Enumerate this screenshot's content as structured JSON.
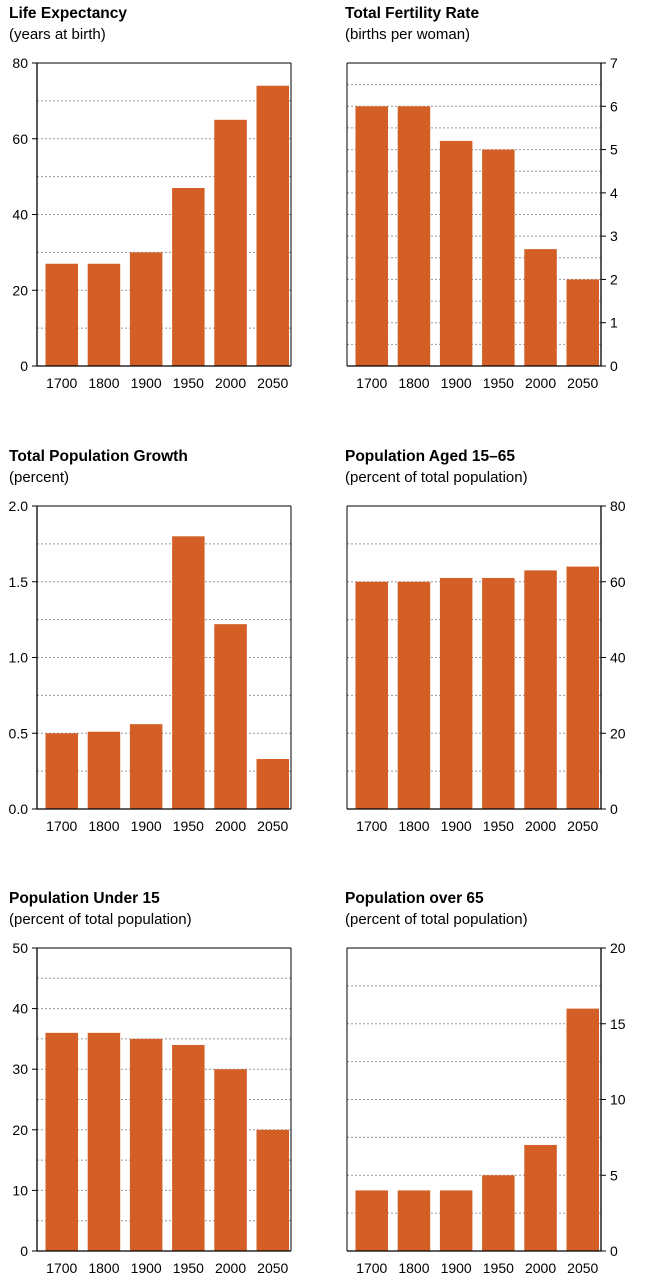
{
  "style": {
    "bar_color": "#D35F27",
    "grid_color": "#999999",
    "axis_color": "#000000"
  },
  "chart_data": [
    {
      "type": "bar",
      "title": "Life Expectancy",
      "subtitle": "(years at birth)",
      "categories": [
        "1700",
        "1800",
        "1900",
        "1950",
        "2000",
        "2050"
      ],
      "values": [
        27,
        27,
        30,
        47,
        65,
        74
      ],
      "ylim": [
        0,
        80
      ],
      "yticks": [
        0,
        20,
        40,
        60,
        80
      ],
      "ytick_labels": [
        "0",
        "20",
        "40",
        "60",
        "80"
      ],
      "yaxis_side": "left",
      "grid": true
    },
    {
      "type": "bar",
      "title": "Total Fertility Rate",
      "subtitle": "(births per woman)",
      "categories": [
        "1700",
        "1800",
        "1900",
        "1950",
        "2000",
        "2050"
      ],
      "values": [
        6.0,
        6.0,
        5.2,
        5.0,
        2.7,
        2.0
      ],
      "ylim": [
        0,
        7
      ],
      "yticks": [
        0,
        1,
        2,
        3,
        4,
        5,
        6,
        7
      ],
      "ytick_labels": [
        "0",
        "1",
        "2",
        "3",
        "4",
        "5",
        "6",
        "7"
      ],
      "yaxis_side": "right",
      "grid": true
    },
    {
      "type": "bar",
      "title": "Total Population Growth",
      "subtitle": "(percent)",
      "categories": [
        "1700",
        "1800",
        "1900",
        "1950",
        "2000",
        "2050"
      ],
      "values": [
        0.5,
        0.51,
        0.56,
        1.8,
        1.22,
        0.33
      ],
      "ylim": [
        0,
        2.0
      ],
      "yticks": [
        0,
        0.5,
        1.0,
        1.5,
        2.0
      ],
      "ytick_labels": [
        "0.0",
        "0.5",
        "1.0",
        "1.5",
        "2.0"
      ],
      "yaxis_side": "left",
      "grid": true
    },
    {
      "type": "bar",
      "title": "Population Aged 15–65",
      "subtitle": "(percent of total population)",
      "categories": [
        "1700",
        "1800",
        "1900",
        "1950",
        "2000",
        "2050"
      ],
      "values": [
        60,
        60,
        61,
        61,
        63,
        64
      ],
      "ylim": [
        0,
        80
      ],
      "yticks": [
        0,
        20,
        40,
        60,
        80
      ],
      "ytick_labels": [
        "0",
        "20",
        "40",
        "60",
        "80"
      ],
      "yaxis_side": "right",
      "grid": true
    },
    {
      "type": "bar",
      "title": "Population Under 15",
      "subtitle": "(percent of total population)",
      "categories": [
        "1700",
        "1800",
        "1900",
        "1950",
        "2000",
        "2050"
      ],
      "values": [
        36,
        36,
        35,
        34,
        30,
        20
      ],
      "ylim": [
        0,
        50
      ],
      "yticks": [
        0,
        10,
        20,
        30,
        40,
        50
      ],
      "ytick_labels": [
        "0",
        "10",
        "20",
        "30",
        "40",
        "50"
      ],
      "yaxis_side": "left",
      "grid": true
    },
    {
      "type": "bar",
      "title": "Population over 65",
      "subtitle": "(percent of total population)",
      "categories": [
        "1700",
        "1800",
        "1900",
        "1950",
        "2000",
        "2050"
      ],
      "values": [
        4,
        4,
        4,
        5,
        7,
        16
      ],
      "ylim": [
        0,
        20
      ],
      "yticks": [
        0,
        5,
        10,
        15,
        20
      ],
      "ytick_labels": [
        "0",
        "5",
        "10",
        "15",
        "20"
      ],
      "yaxis_side": "right",
      "grid": true
    }
  ]
}
